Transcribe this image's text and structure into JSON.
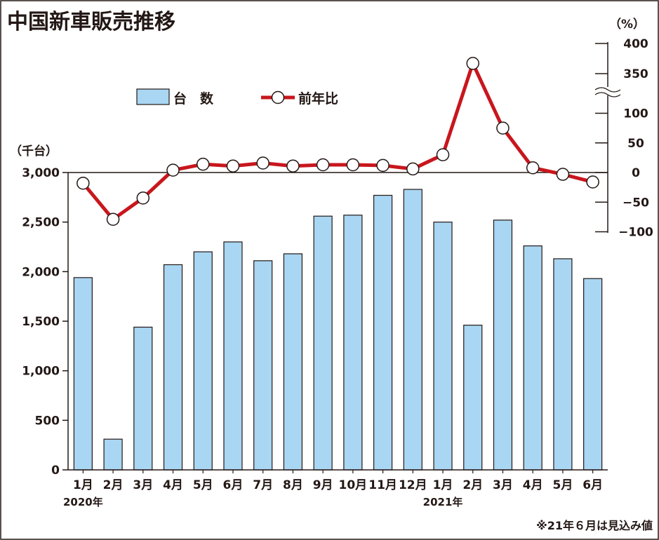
{
  "colors": {
    "bar_fill": "#a9d6f2",
    "bar_stroke": "#231815",
    "line": "#c8161d",
    "marker_fill": "#ffffff",
    "axis": "#231815",
    "border": "#231815"
  },
  "chart_data": {
    "type": "bar+line",
    "title": "中国新車販売推移",
    "categories": [
      "1月",
      "2月",
      "3月",
      "4月",
      "5月",
      "6月",
      "7月",
      "8月",
      "9月",
      "10月",
      "11月",
      "12月",
      "1月",
      "2月",
      "3月",
      "4月",
      "5月",
      "6月"
    ],
    "year_labels": [
      {
        "index": 0,
        "text": "2020年"
      },
      {
        "index": 12,
        "text": "2021年"
      }
    ],
    "left_axis": {
      "unit": "（千台）",
      "ylim": [
        0,
        3000
      ],
      "ticks": [
        {
          "value": 0,
          "label": "0"
        },
        {
          "value": 500,
          "label": "500"
        },
        {
          "value": 1000,
          "label": "1,000"
        },
        {
          "value": 1500,
          "label": "1,500"
        },
        {
          "value": 2000,
          "label": "2,000"
        },
        {
          "value": 2500,
          "label": "2,500"
        },
        {
          "value": 3000,
          "label": "3,000"
        }
      ]
    },
    "right_axis": {
      "unit": "（%）",
      "broken": true,
      "ticks": [
        {
          "value": -100,
          "label": "−100"
        },
        {
          "value": -50,
          "label": "−50"
        },
        {
          "value": 0,
          "label": "0"
        },
        {
          "value": 50,
          "label": "50"
        },
        {
          "value": 100,
          "label": "100"
        },
        {
          "value": 350,
          "label": "350"
        },
        {
          "value": 400,
          "label": "400"
        }
      ]
    },
    "series": [
      {
        "name": "台　数",
        "type": "bar",
        "axis": "left",
        "values": [
          1940,
          310,
          1440,
          2070,
          2200,
          2300,
          2110,
          2180,
          2560,
          2570,
          2770,
          2830,
          2500,
          1460,
          2520,
          2260,
          2130,
          1930
        ]
      },
      {
        "name": "前年比",
        "type": "line",
        "axis": "right",
        "values": [
          -18,
          -79,
          -43,
          4,
          14,
          11,
          16,
          11,
          13,
          13,
          12,
          6,
          30,
          367,
          75,
          8,
          -3,
          -16
        ]
      }
    ],
    "note": "※21年６月は見込み値"
  }
}
